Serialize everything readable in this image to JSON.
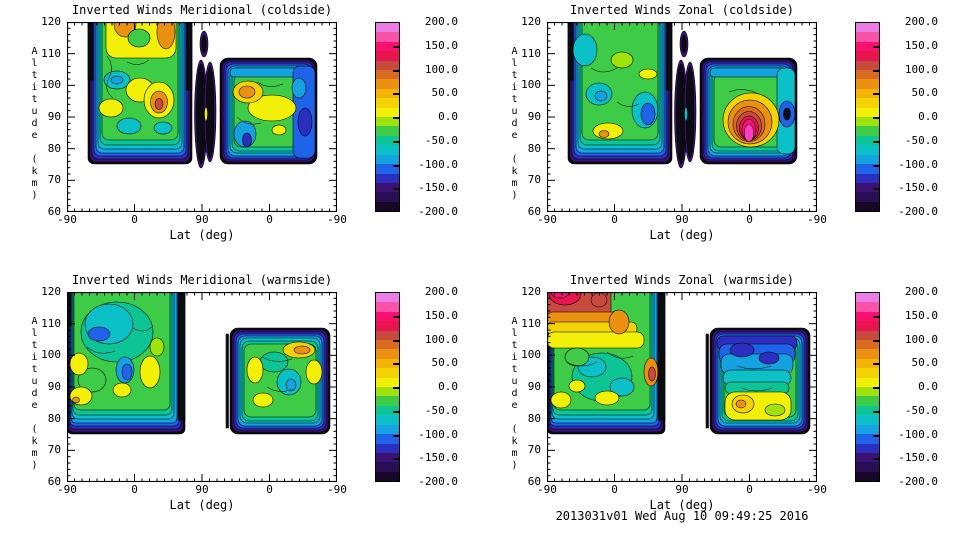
{
  "page": {
    "background": "#ffffff",
    "footer": "2013031v01 Wed Aug 10 09:49:25 2016"
  },
  "palette_top_to_bottom": [
    "#ec7ce8",
    "#f853a8",
    "#f91070",
    "#e81550",
    "#c74a3e",
    "#da6c21",
    "#ea9112",
    "#f2b400",
    "#f3d303",
    "#f2ef08",
    "#9fe20c",
    "#3ecb47",
    "#0cc494",
    "#0cc0c8",
    "#14a3e0",
    "#1f63e8",
    "#2b2fbf",
    "#3b1273",
    "#2a0d52",
    "#180626"
  ],
  "colorbar": {
    "max": 200.0,
    "min": -200.0,
    "tick_step": 50,
    "tick_labels": [
      "200.0",
      "150.0",
      "100.0",
      "50.0",
      "0.0",
      "-50.0",
      "-100.0",
      "-150.0",
      "-200.0"
    ]
  },
  "axes": {
    "xlabel": "Lat (deg)",
    "ylabel": "Altitude (km)",
    "x_tick_labels": [
      "-90",
      "0",
      "90",
      "0",
      "-90"
    ],
    "y_tick_labels": [
      "120",
      "110",
      "100",
      "90",
      "80",
      "70",
      "60"
    ],
    "x_minor_tick_deg": 10,
    "y_minor_tick_km": 2
  },
  "chart_data": [
    {
      "type": "contour",
      "title": "Inverted Winds Meridional (coldside)",
      "xlabel": "Lat (deg)",
      "ylabel": "Altitude (km)",
      "x_tick_labels": [
        "-90",
        "0",
        "90",
        "0",
        "-90"
      ],
      "x_axis_structure": "latitude sweeps -90 to +90 (ascending node) then +90 back to -90 (descending node)",
      "ylim": [
        60,
        120
      ],
      "y_ticks": [
        60,
        70,
        80,
        90,
        100,
        110,
        120
      ],
      "value_range": [
        -200,
        200
      ],
      "data_altitude_extent": [
        75,
        120
      ],
      "features": [
        "ascending segment lat -62..77: green/cyan field (-75..0) with yellow 0..+25 patches; local orange maximum ~ +75 near lat 30, alt 97 km; orange columns +50..+75 at the top near lat -45 and 40",
        "descending segment lat 62..-55: top edge near 110 km; orange maximum ~ +60 near lat 55, alt 97 km; yellow band 0..+25 at mid-levels; blue -100..-150 toward lat -50 and on the right side",
        "two narrow near-black bands (<= -180) in the data gap around lat 90",
        "dark purple rim (-150..-200) along the 75-78 km bottom boundary of both segments"
      ]
    },
    {
      "type": "contour",
      "title": "Inverted Winds Zonal (coldside)",
      "xlabel": "Lat (deg)",
      "ylabel": "Altitude (km)",
      "x_tick_labels": [
        "-90",
        "0",
        "90",
        "0",
        "-90"
      ],
      "x_axis_structure": "latitude sweeps -90 to +90 (ascending node) then +90 back to -90 (descending node)",
      "ylim": [
        60,
        120
      ],
      "y_ticks": [
        60,
        70,
        80,
        90,
        100,
        110,
        120
      ],
      "value_range": [
        -200,
        200
      ],
      "data_altitude_extent": [
        75,
        120
      ],
      "features": [
        "ascending segment: green -25..-50 with cyan patches -75..-100; yellow spots ~ +10 near lat -25/alt 85 and lat 45/alt 103; blue pocket ~ -120 near lat 40, alt 91",
        "descending segment: strong maximum with magenta core ~ +160 at lat 25, alt 86-92 km, ringed by pink/red/orange contours; near-black minimum <= -190 near lat -35, alt 90; cyan/blue column on the poleward half",
        "narrow near-black bands (<= -180) around lat 90; dark purple rim along the 75-78 km bottom boundary"
      ]
    },
    {
      "type": "contour",
      "title": "Inverted Winds Meridional (warmside)",
      "xlabel": "Lat (deg)",
      "ylabel": "Altitude (km)",
      "x_tick_labels": [
        "-90",
        "0",
        "90",
        "0",
        "-90"
      ],
      "x_axis_structure": "latitude sweeps -90 to +90 (ascending node) then +90 back to -90 (descending node)",
      "ylim": [
        60,
        120
      ],
      "y_ticks": [
        60,
        70,
        80,
        90,
        100,
        110,
        120
      ],
      "value_range": [
        -200,
        200
      ],
      "data_altitude_extent": [
        75,
        120
      ],
      "features": [
        "ascending segment lat -90..55: mottled green/teal -25..-75 with blue pockets ~ -120 near lat -40/alt 106 and lat -20/alt 95; yellow 0..+25 patches along lat -90..-60 below 95 km and near lat 25, alt 88-100",
        "descending segment lat 65..-90: top edge near 110 km; gold patch ~ +40 near lat 5, alt 100; scattered yellow 0..+25 patches; cyan/blue pocket ~ -100 near lat -15, alt 88",
        "wide empty data gap around lat 90; dark purple rim along the 75-78 km bottom boundary"
      ]
    },
    {
      "type": "contour",
      "title": "Inverted Winds Zonal (warmside)",
      "xlabel": "Lat (deg)",
      "ylabel": "Altitude (km)",
      "x_tick_labels": [
        "-90",
        "0",
        "90",
        "0",
        "-90"
      ],
      "x_axis_structure": "latitude sweeps -90 to +90 (ascending node) then +90 back to -90 (descending node)",
      "ylim": [
        60,
        120
      ],
      "y_ticks": [
        60,
        70,
        80,
        90,
        100,
        110,
        120
      ],
      "value_range": [
        -200,
        200
      ],
      "data_altitude_extent": [
        75,
        120
      ],
      "features": [
        "ascending segment: strong positive cap at 112-120 km for lat -90..-30 with crimson/pink ~ +150 near lat -70 and orange/gold +50..+100 bands below; rust patch ~ +100 near lat 45, alt 97-104; teal/cyan -50..-100 interior; yellow ~ 0 patches at 83-90 km",
        "descending segment: dark cap near 108 km; blue band -100..-150 at 98-106 km; yellow 0..+25 band at 84-96 km with gold spot ~ +40 near lat 30; green/cyan below",
        "data gap around lat 90; dark purple rim along the 75-78 km bottom boundary"
      ]
    }
  ]
}
